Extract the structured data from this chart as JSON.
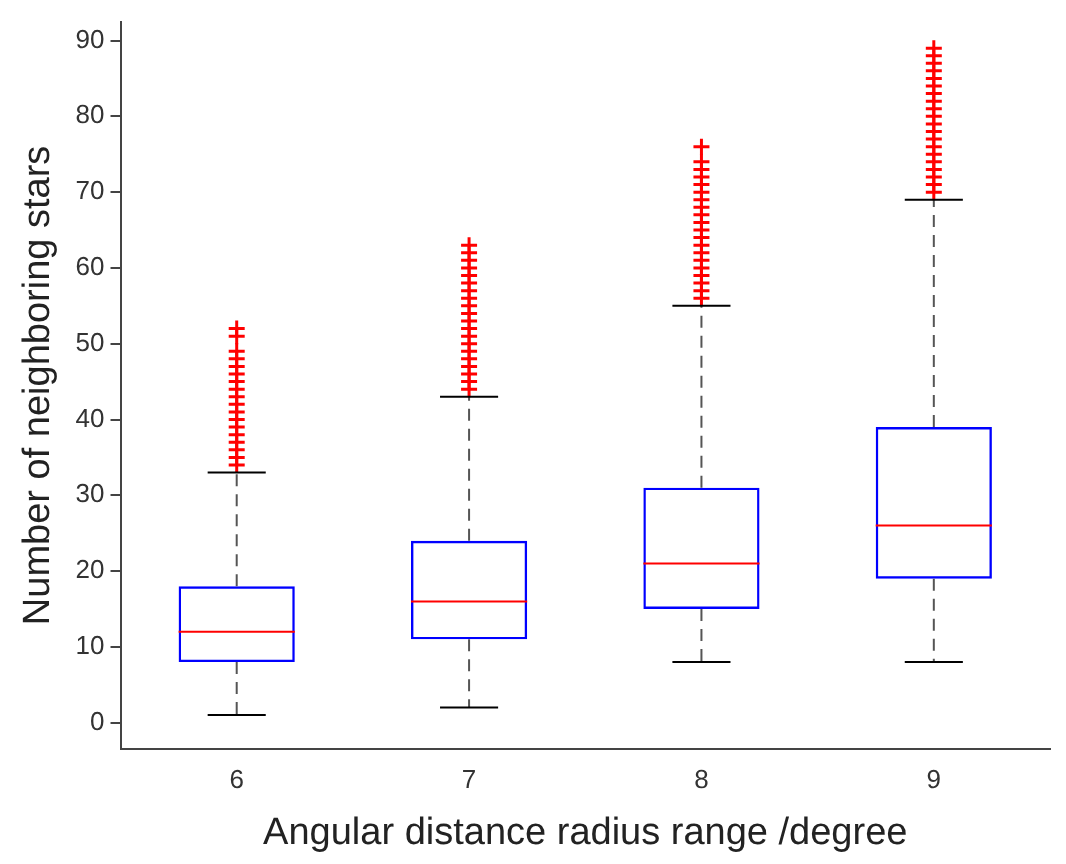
{
  "chart_data": {
    "type": "box",
    "xlabel": "Angular distance radius range /degree",
    "ylabel": "Number of neighboring stars",
    "categories": [
      "6",
      "7",
      "8",
      "9"
    ],
    "ylim": [
      -3.5,
      92.5
    ],
    "yticks": [
      0,
      10,
      20,
      30,
      40,
      50,
      60,
      70,
      80,
      90
    ],
    "grid": false,
    "legend": false,
    "series": [
      {
        "color": "#0000ff",
        "boxes": [
          {
            "low": 1,
            "q1": 8,
            "median": 12,
            "q3": 18,
            "high": 33,
            "outliers": [
              34,
              35,
              36,
              37,
              38,
              39,
              40,
              41,
              42,
              43,
              44,
              45,
              46,
              47,
              48,
              49,
              51,
              52
            ]
          },
          {
            "low": 2,
            "q1": 11,
            "median": 16,
            "q3": 24,
            "high": 43,
            "outliers": [
              44,
              45,
              46,
              47,
              48,
              49,
              50,
              51,
              52,
              53,
              54,
              55,
              56,
              57,
              58,
              59,
              60,
              61,
              62,
              63
            ]
          },
          {
            "low": 8,
            "q1": 15,
            "median": 21,
            "q3": 31,
            "high": 55,
            "outliers": [
              56,
              57,
              58,
              59,
              60,
              61,
              62,
              63,
              64,
              65,
              66,
              67,
              68,
              69,
              70,
              71,
              72,
              73,
              74,
              76
            ]
          },
          {
            "low": 8,
            "q1": 19,
            "median": 26,
            "q3": 39,
            "high": 69,
            "outliers": [
              70,
              71,
              72,
              73,
              74,
              75,
              76,
              77,
              78,
              79,
              80,
              81,
              82,
              83,
              84,
              85,
              86,
              87,
              88,
              89
            ]
          }
        ]
      }
    ]
  }
}
